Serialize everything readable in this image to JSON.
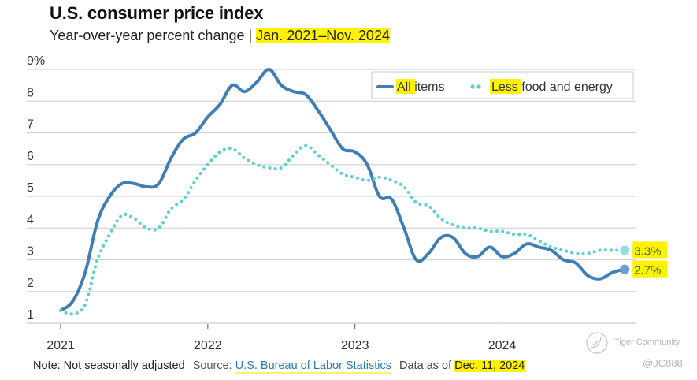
{
  "header": {
    "title": "U.S. consumer price index",
    "subtitle_main": "Year-over-year percent change | ",
    "subtitle_range": "Jan. 2021–Nov. 2024"
  },
  "chart_data": {
    "type": "line",
    "title": "U.S. consumer price index",
    "subtitle": "Year-over-year percent change | Jan. 2021–Nov. 2024",
    "xlabel": "",
    "ylabel": "",
    "ylim": [
      1,
      9
    ],
    "yticks": [
      1,
      2,
      3,
      4,
      5,
      6,
      7,
      8,
      9
    ],
    "ytick_labels": [
      "1",
      "2",
      "3",
      "4",
      "5",
      "6",
      "7",
      "8",
      "9%"
    ],
    "xticks": [
      "2021",
      "2022",
      "2023",
      "2024"
    ],
    "x_start": "Jan. 2021",
    "x_end": "Nov. 2024",
    "grid": true,
    "legend_position": "top-right",
    "series": [
      {
        "name": "All items",
        "style": "solid",
        "color": "#3f7fb6",
        "values": [
          1.4,
          1.7,
          2.6,
          4.2,
          5.0,
          5.4,
          5.4,
          5.3,
          5.4,
          6.2,
          6.8,
          7.0,
          7.5,
          7.9,
          8.5,
          8.3,
          8.6,
          9.0,
          8.5,
          8.3,
          8.2,
          7.7,
          7.1,
          6.5,
          6.4,
          6.0,
          5.0,
          4.9,
          4.0,
          3.0,
          3.2,
          3.7,
          3.7,
          3.2,
          3.1,
          3.4,
          3.1,
          3.2,
          3.5,
          3.4,
          3.3,
          3.0,
          2.9,
          2.5,
          2.4,
          2.6,
          2.7
        ],
        "end_label": "2.7%"
      },
      {
        "name": "Less food and energy",
        "style": "dotted",
        "color": "#5fd0d2",
        "values": [
          1.4,
          1.3,
          1.6,
          3.0,
          3.8,
          4.4,
          4.3,
          4.0,
          4.0,
          4.6,
          4.9,
          5.5,
          6.0,
          6.4,
          6.5,
          6.2,
          6.0,
          5.9,
          5.9,
          6.3,
          6.6,
          6.3,
          6.0,
          5.7,
          5.6,
          5.5,
          5.6,
          5.5,
          5.3,
          4.8,
          4.7,
          4.3,
          4.1,
          4.0,
          4.0,
          3.9,
          3.9,
          3.8,
          3.8,
          3.6,
          3.4,
          3.3,
          3.2,
          3.2,
          3.3,
          3.3,
          3.3
        ],
        "end_label": "3.3%"
      }
    ],
    "legend": [
      {
        "highlight": "All",
        "rest": " items"
      },
      {
        "highlight": "Less",
        "rest": " food and energy"
      }
    ]
  },
  "footer": {
    "note": "Note: Not seasonally adjusted",
    "source_label": "Source:",
    "source_link": "U.S. Bureau of Labor Statistics",
    "asof_label": "Data as of",
    "asof_date": "Dec. 11, 2024"
  },
  "watermark": {
    "brand": "Tiger Community",
    "handle": "@JC888"
  },
  "colors": {
    "all_items": "#3f7fb6",
    "core": "#5fd0d2",
    "highlight": "#fff200",
    "grid": "#d4d4d4"
  }
}
